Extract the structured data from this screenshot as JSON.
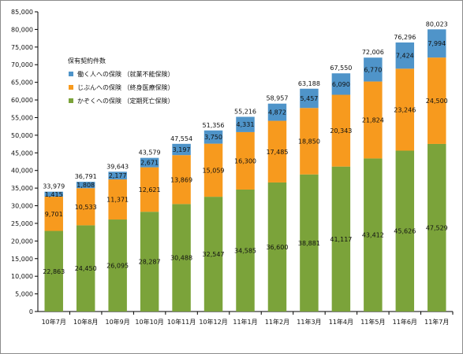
{
  "chart_data": {
    "type": "bar",
    "stacked": true,
    "categories": [
      "10年7月",
      "10年8月",
      "10年9月",
      "10年10月",
      "10年11月",
      "10年12月",
      "11年1月",
      "11年2月",
      "11年3月",
      "11年4月",
      "11年5月",
      "11年6月",
      "11年7月"
    ],
    "series": [
      {
        "name": "かぞくへの保険 （定期死亡保険）",
        "color": "#7ba33a",
        "values": [
          22863,
          24450,
          26095,
          28287,
          30488,
          32547,
          34585,
          36600,
          38881,
          41117,
          43412,
          45626,
          47529
        ]
      },
      {
        "name": "じぶんへの保険 （終身医療保険）",
        "color": "#f79a1e",
        "values": [
          9701,
          10533,
          11371,
          12621,
          13869,
          15059,
          16300,
          17485,
          18850,
          20343,
          21824,
          23246,
          24500
        ]
      },
      {
        "name": "働く人への保険 （就業不能保険）",
        "color": "#4f94c9",
        "values": [
          1415,
          1808,
          2177,
          2671,
          3197,
          3750,
          4331,
          4872,
          5457,
          6090,
          6770,
          7424,
          7994
        ]
      }
    ],
    "totals": [
      33979,
      36791,
      39643,
      43579,
      47554,
      51356,
      55216,
      58957,
      63188,
      67550,
      72006,
      76296,
      80023
    ],
    "legend_title": "保有契約件数",
    "legend_position": "top-left",
    "ylim": [
      0,
      85000
    ],
    "ytick_step": 5000,
    "grid": false
  }
}
